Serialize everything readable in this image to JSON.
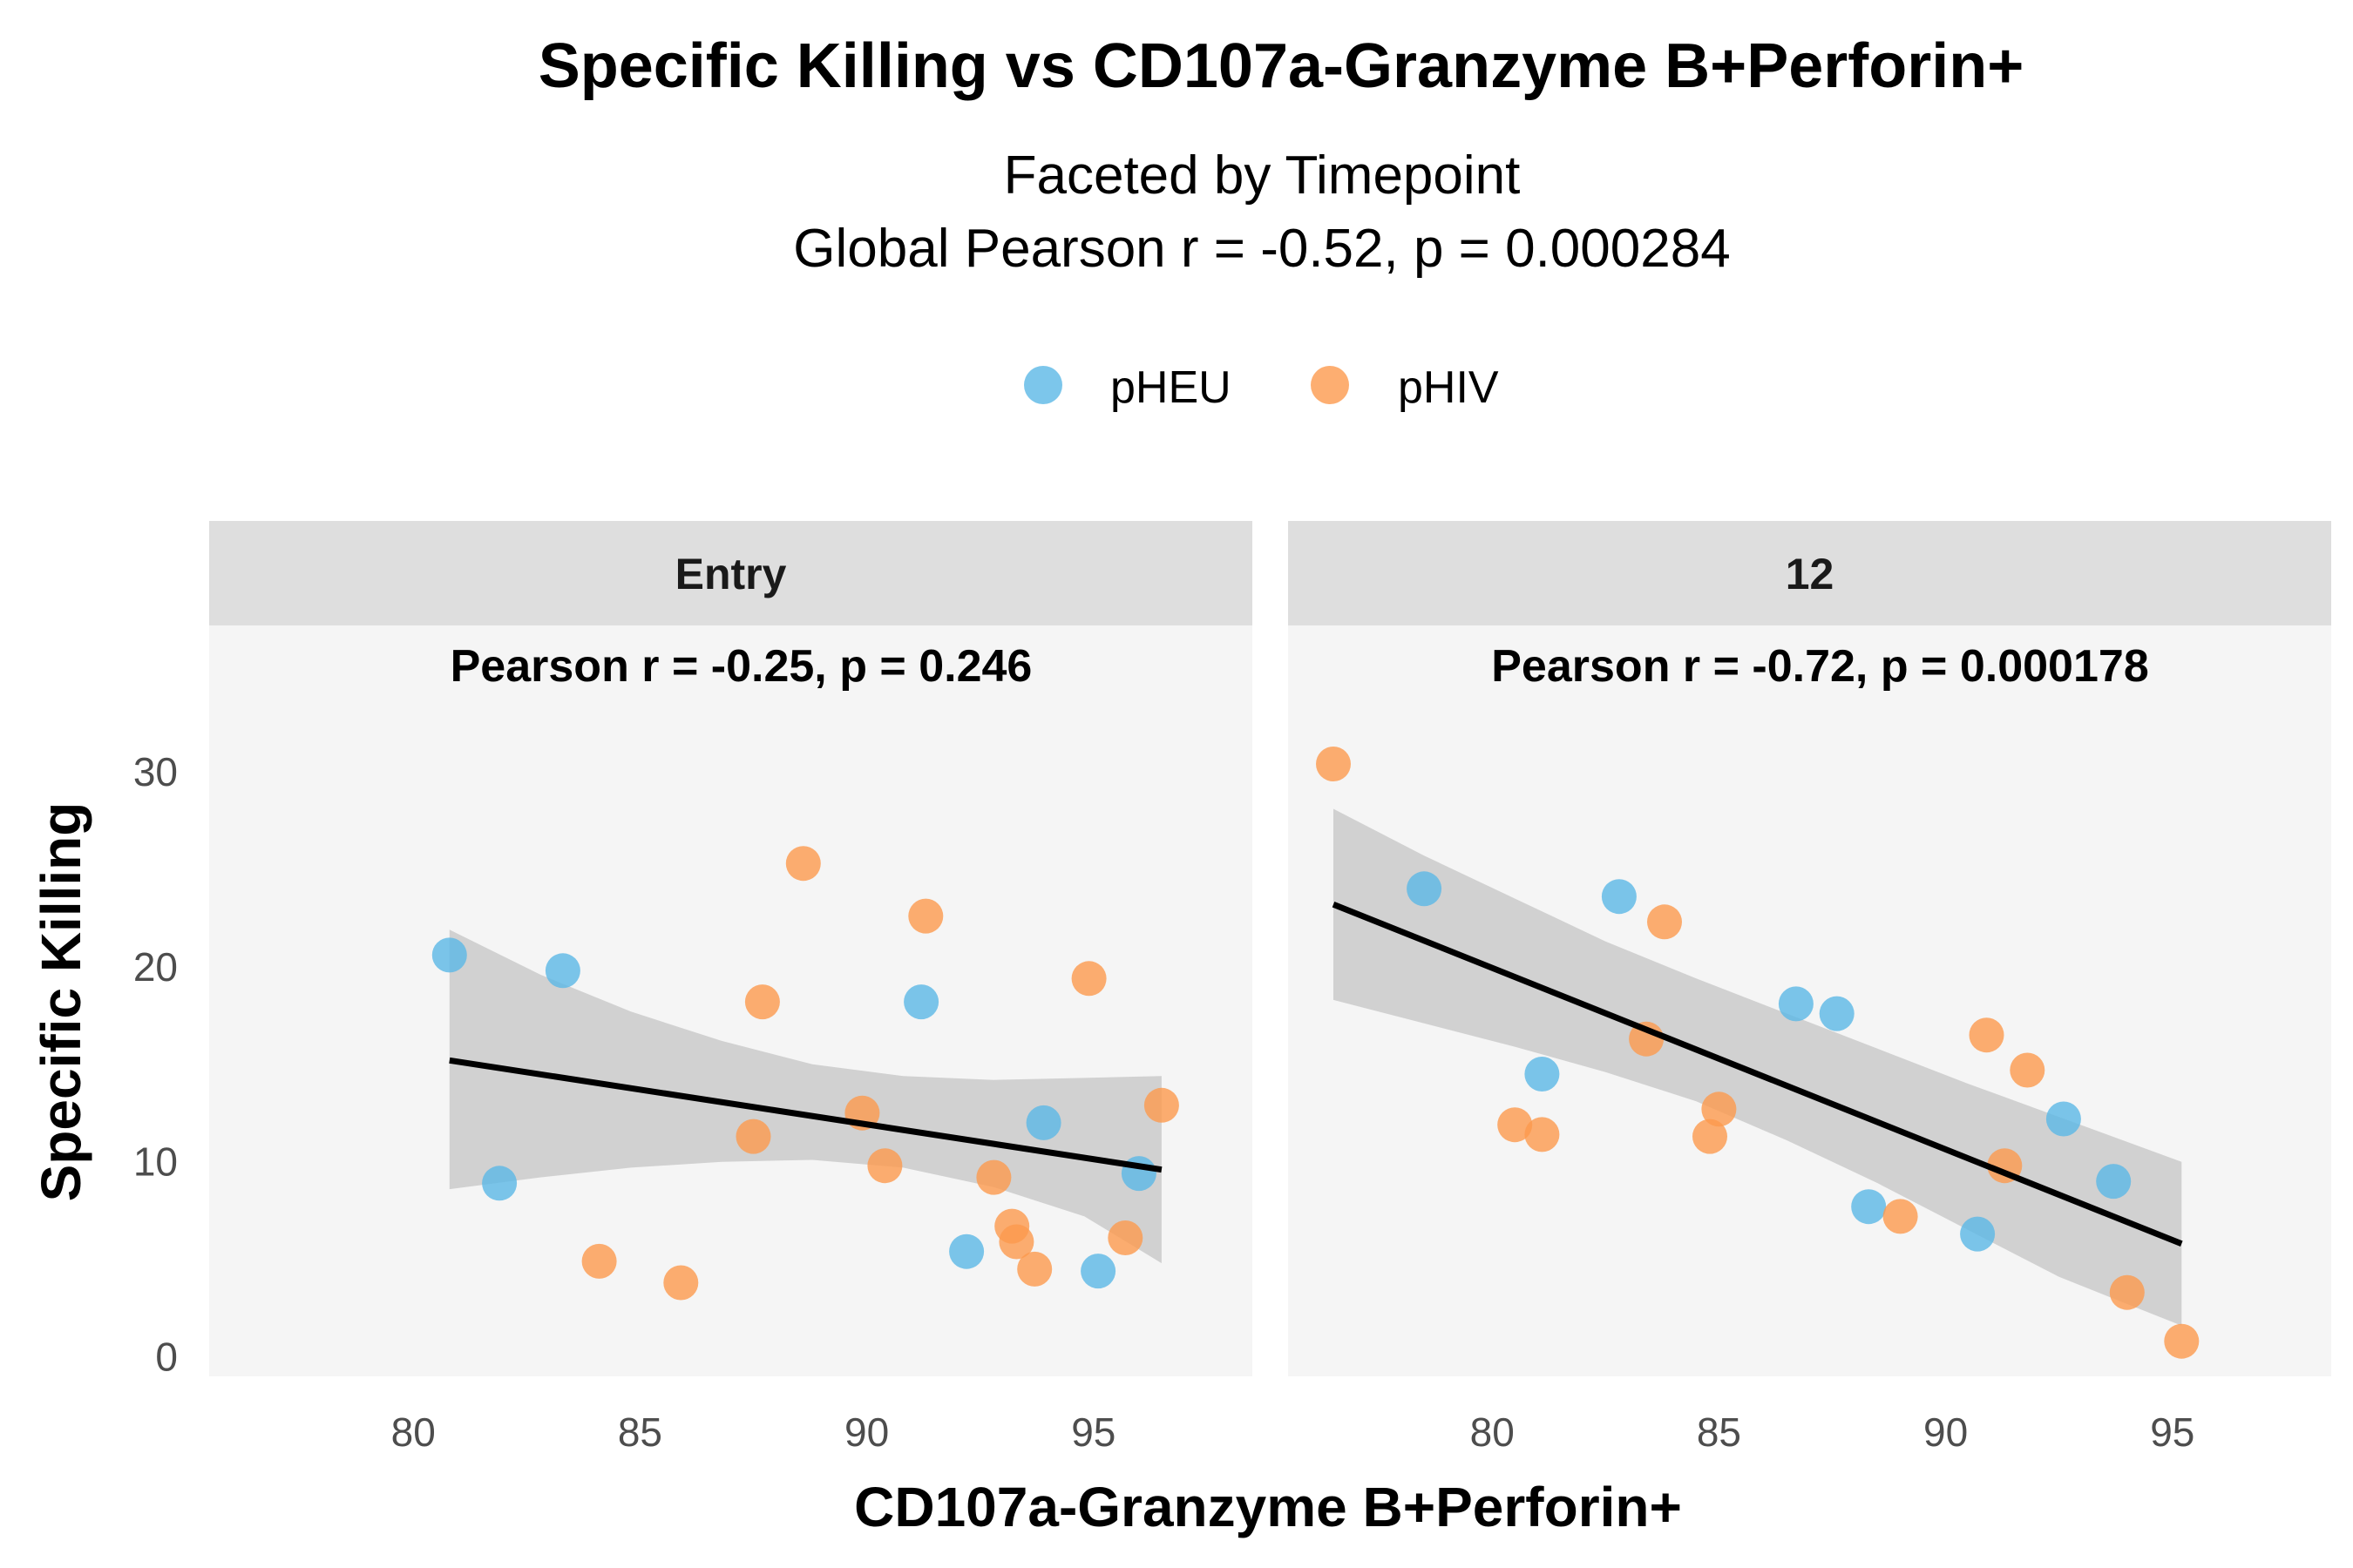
{
  "chart_data": {
    "type": "scatter",
    "title": "Specific Killing vs CD107a-Granzyme B+Perforin+",
    "subtitle_lines": [
      "Faceted by Timepoint",
      "Global Pearson r = -0.52, p = 0.000284"
    ],
    "xlabel": "CD107a-Granzyme B+Perforin+",
    "ylabel": "Specific Killing",
    "xlim": [
      75.5,
      98.5
    ],
    "ylim": [
      -1,
      37.5
    ],
    "x_ticks": [
      80,
      85,
      90,
      95
    ],
    "y_ticks": [
      0,
      10,
      20,
      30
    ],
    "legend": {
      "placement": "top",
      "entries": [
        {
          "name": "pHEU",
          "color": "#5BB8E6"
        },
        {
          "name": "pHIV",
          "color": "#FC9A4E"
        }
      ]
    },
    "colors": {
      "pHEU": "#5BB8E6",
      "pHIV": "#FC9A4E",
      "line": "#000000",
      "band": "#BDBDBD",
      "panel_bg": "#F5F5F5",
      "strip_bg": "#DEDEDE"
    },
    "facets": [
      {
        "label": "Entry",
        "annotation": "Pearson r = -0.25, p = 0.246",
        "fit": {
          "x": [
            80.8,
            96.5
          ],
          "y": [
            15.2,
            9.6
          ]
        },
        "band": {
          "x": [
            80.8,
            82.8,
            84.8,
            86.8,
            88.8,
            90.8,
            92.8,
            94.8,
            96.5
          ],
          "lower": [
            8.6,
            9.2,
            9.7,
            10.0,
            10.1,
            9.7,
            8.7,
            7.2,
            4.8
          ],
          "upper": [
            21.9,
            19.6,
            17.7,
            16.2,
            15.0,
            14.4,
            14.2,
            14.3,
            14.4
          ]
        },
        "series": [
          {
            "name": "pHEU",
            "points": [
              [
                80.8,
                20.6
              ],
              [
                81.9,
                8.9
              ],
              [
                83.3,
                19.8
              ],
              [
                91.2,
                18.2
              ],
              [
                92.2,
                5.4
              ],
              [
                93.9,
                12.0
              ],
              [
                95.1,
                4.4
              ],
              [
                96.0,
                9.4
              ]
            ]
          },
          {
            "name": "pHIV",
            "points": [
              [
                84.1,
                4.9
              ],
              [
                85.9,
                3.8
              ],
              [
                87.5,
                11.3
              ],
              [
                87.7,
                18.2
              ],
              [
                88.6,
                25.3
              ],
              [
                89.9,
                12.5
              ],
              [
                90.4,
                9.8
              ],
              [
                91.3,
                22.6
              ],
              [
                92.8,
                9.2
              ],
              [
                93.2,
                6.7
              ],
              [
                93.3,
                5.9
              ],
              [
                93.7,
                4.5
              ],
              [
                94.9,
                19.4
              ],
              [
                95.7,
                6.1
              ],
              [
                96.5,
                12.9
              ]
            ]
          }
        ]
      },
      {
        "label": "12",
        "annotation": "Pearson r = -0.72, p = 0.000178",
        "fit": {
          "x": [
            76.5,
            95.2
          ],
          "y": [
            23.2,
            5.8
          ]
        },
        "band": {
          "x": [
            76.5,
            78.5,
            80.5,
            82.5,
            84.5,
            86.5,
            88.5,
            90.5,
            92.5,
            95.2
          ],
          "lower": [
            18.3,
            17.1,
            15.9,
            14.6,
            13.1,
            11.1,
            8.9,
            6.5,
            4.1,
            1.6
          ],
          "upper": [
            28.1,
            25.7,
            23.5,
            21.3,
            19.4,
            17.6,
            15.8,
            14.0,
            12.3,
            10.0
          ]
        },
        "series": [
          {
            "name": "pHEU",
            "points": [
              [
                78.5,
                24.0
              ],
              [
                81.1,
                14.5
              ],
              [
                82.8,
                23.6
              ],
              [
                86.7,
                18.1
              ],
              [
                87.6,
                17.6
              ],
              [
                88.3,
                7.7
              ],
              [
                90.7,
                6.3
              ],
              [
                92.6,
                12.2
              ],
              [
                93.7,
                9.0
              ]
            ]
          },
          {
            "name": "pHIV",
            "points": [
              [
                76.5,
                30.4
              ],
              [
                80.5,
                11.9
              ],
              [
                81.1,
                11.4
              ],
              [
                83.4,
                16.3
              ],
              [
                83.8,
                22.3
              ],
              [
                84.8,
                11.3
              ],
              [
                85.0,
                12.7
              ],
              [
                89.0,
                7.2
              ],
              [
                90.9,
                16.5
              ],
              [
                91.3,
                9.8
              ],
              [
                91.8,
                14.7
              ],
              [
                94.0,
                3.3
              ],
              [
                95.2,
                0.8
              ]
            ]
          }
        ]
      }
    ]
  }
}
